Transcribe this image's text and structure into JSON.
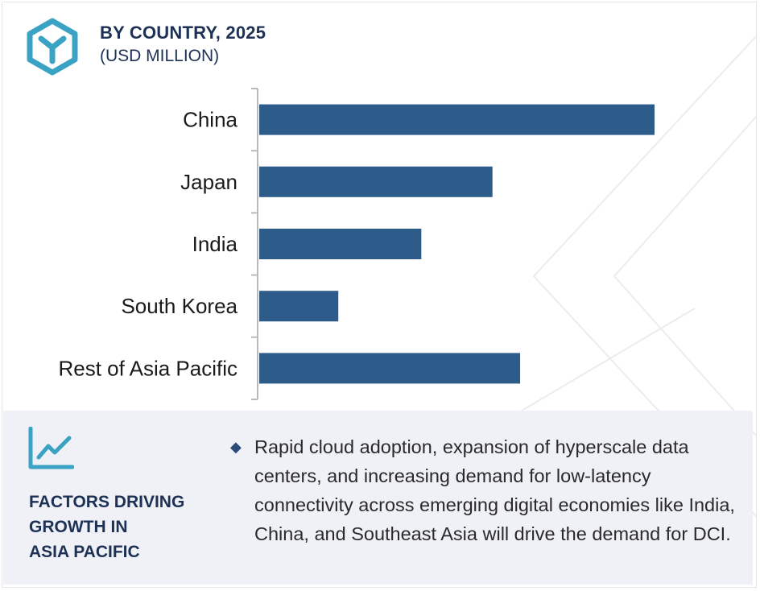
{
  "header": {
    "title": "BY COUNTRY, 2025",
    "subtitle": "(USD MILLION)",
    "logo_icon": "brand-hexagon-icon"
  },
  "chart_data": {
    "type": "bar",
    "orientation": "horizontal",
    "title": "BY COUNTRY, 2025",
    "subtitle": "(USD MILLION)",
    "categories": [
      "China",
      "Japan",
      "India",
      "South Korea",
      "Rest of Asia Pacific"
    ],
    "values": [
      100,
      59,
      41,
      20,
      66
    ],
    "value_note": "relative magnitudes; axis values not printed",
    "xlim": [
      0,
      100
    ],
    "grid": false,
    "legend": "none",
    "colors": {
      "bar": "#2d5b8a",
      "axis": "#b9b9b9"
    }
  },
  "factors": {
    "title_lines": [
      "FACTORS DRIVING",
      "GROWTH IN",
      "ASIA PACIFIC"
    ],
    "icon": "line-chart-icon",
    "bullet_icon": "diamond-bullet-icon",
    "text": "Rapid cloud adoption, expansion of hyperscale data centers, and increasing demand for low-latency connectivity across emerging digital economies like India, China, and Southeast Asia will drive the demand for DCI."
  },
  "colors": {
    "accent": "#3aa3c4",
    "navy": "#1d3155",
    "panel_bg": "#eff1f7"
  }
}
